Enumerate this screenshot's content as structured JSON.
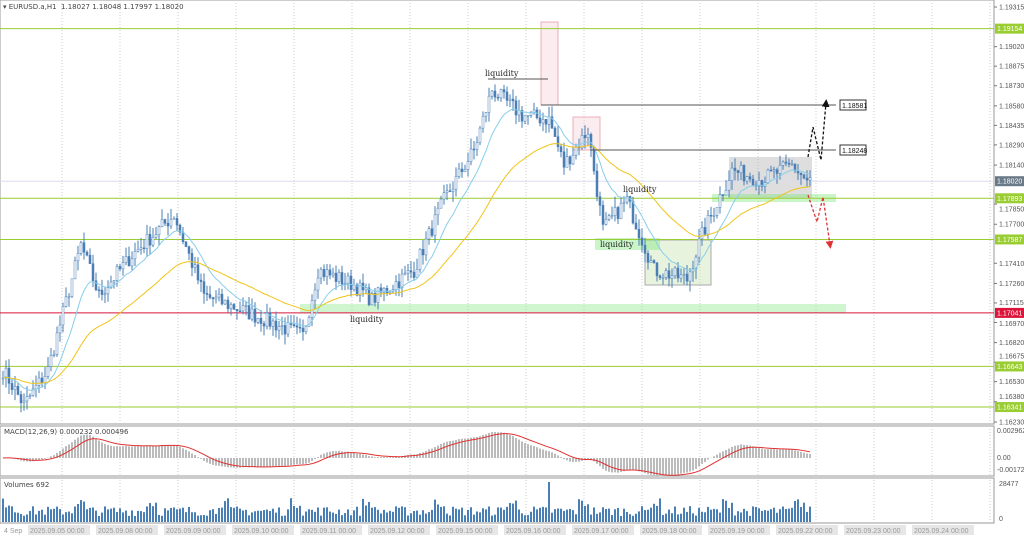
{
  "header": {
    "symbol": "EURUSD.a,H1",
    "open": "1.18027",
    "high": "1.18048",
    "low": "1.17997",
    "close": "1.18020"
  },
  "price_axis": {
    "ticks": [
      "1.19315",
      "1.19020",
      "1.18875",
      "1.18730",
      "1.18580",
      "1.18435",
      "1.18290",
      "1.18140",
      "1.17850",
      "1.17700",
      "1.17410",
      "1.17260",
      "1.17115",
      "1.16970",
      "1.16820",
      "1.16675",
      "1.16530",
      "1.16380",
      "1.16230"
    ],
    "current_price": "1.18020",
    "levels": [
      {
        "price": "1.19154",
        "color": "#9ACD32"
      },
      {
        "price": "1.17893",
        "color": "#9ACD32"
      },
      {
        "price": "1.17587",
        "color": "#9ACD32"
      },
      {
        "price": "1.17041",
        "color": "#DC143C"
      },
      {
        "price": "1.16643",
        "color": "#9ACD32"
      },
      {
        "price": "1.16341",
        "color": "#9ACD32"
      }
    ]
  },
  "annotations": {
    "targets": [
      "1.18581",
      "1.18248"
    ],
    "liquidity_labels": [
      "liquidity",
      "liquidity",
      "liquidity",
      "liquidity"
    ]
  },
  "macd": {
    "label": "MACD(12,26,9) 0.000232 0.000496",
    "ticks": [
      "0.002962",
      "0.00",
      "-0.001724"
    ]
  },
  "volumes": {
    "label": "Volumes 692",
    "ticks": [
      "28477",
      "0"
    ]
  },
  "time_axis": {
    "labels": [
      "4 Sep",
      "2025.09.05 00:00",
      "2025.09.08 00:00",
      "2025.09.09 00:00",
      "2025.09.10 00:00",
      "2025.09.11 00:00",
      "2025.09.12 00:00",
      "2025.09.15 00:00",
      "2025.09.16 00:00",
      "2025.09.17 00:00",
      "2025.09.18 00:00",
      "2025.09.19 00:00",
      "2025.09.22 00:00",
      "2025.09.23 00:00",
      "2025.09.24 00:00"
    ]
  },
  "chart_data": {
    "type": "candlestick",
    "ylim": [
      1.1623,
      1.19315
    ],
    "close_path": [
      [
        0,
        1.16617
      ],
      [
        7,
        1.16356
      ],
      [
        15,
        1.16617
      ],
      [
        26,
        1.17546
      ],
      [
        32,
        1.1717
      ],
      [
        43,
        1.1747
      ],
      [
        57,
        1.1777
      ],
      [
        67,
        1.1717
      ],
      [
        80,
        1.1706
      ],
      [
        100,
        1.1687
      ],
      [
        105,
        1.1736
      ],
      [
        117,
        1.1725
      ],
      [
        123,
        1.1714
      ],
      [
        137,
        1.1736
      ],
      [
        147,
        1.1788
      ],
      [
        157,
        1.1825
      ],
      [
        163,
        1.187
      ],
      [
        173,
        1.1851
      ],
      [
        182,
        1.1848
      ],
      [
        187,
        1.1814
      ],
      [
        195,
        1.184
      ],
      [
        200,
        1.1766
      ],
      [
        208,
        1.1788
      ],
      [
        217,
        1.1736
      ],
      [
        228,
        1.1729
      ],
      [
        233,
        1.1762
      ],
      [
        243,
        1.181
      ],
      [
        253,
        1.1803
      ],
      [
        263,
        1.1814
      ],
      [
        268,
        1.1802
      ]
    ],
    "colors": {
      "up": "#4a7fb5",
      "fast_ma": "#87CEEB",
      "slow_ma": "#F0C419",
      "macd_signal": "#E03030"
    }
  }
}
